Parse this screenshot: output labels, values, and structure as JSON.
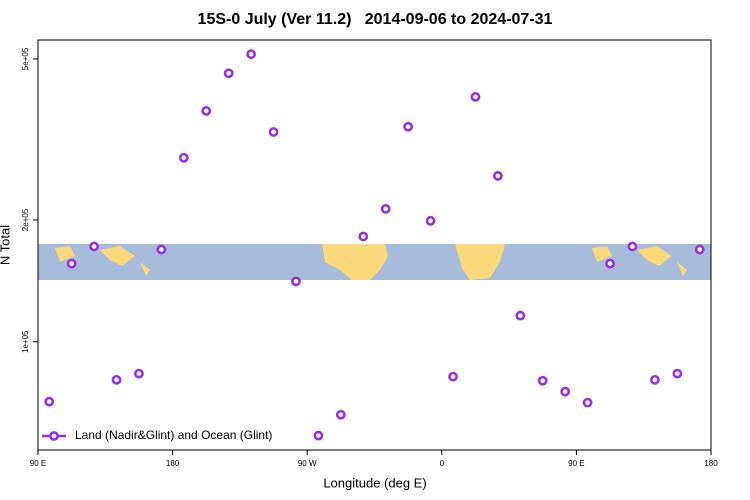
{
  "chart_data": {
    "type": "scatter",
    "title": "15S-0 July (Ver 11.2)   2014-09-06 to 2024-07-31",
    "x_label": "Longitude (deg E)",
    "y_label": "N Total",
    "log_y": true,
    "xlim": [
      90,
      540
    ],
    "ylim": [
      54000,
      557000
    ],
    "xticks": [
      {
        "value": 90,
        "label": "90 E"
      },
      180,
      {
        "value": 270,
        "label": "90 W"
      },
      {
        "value": 360,
        "label": "0"
      },
      {
        "value": 450,
        "label": "90 E"
      },
      {
        "value": 540,
        "label": "180"
      }
    ],
    "yticks": [
      {
        "value": 100000,
        "label": "1e+05"
      },
      {
        "value": 200000,
        "label": "2e+05"
      },
      {
        "value": 500000,
        "label": "5e+05"
      }
    ],
    "legend": "bottom-left",
    "series": [
      {
        "name": "Land (Nadir&Glint) and Ocean (Glint)",
        "color": "#9b2fe6",
        "x": [
          97.5,
          112.5,
          127.5,
          142.5,
          157.5,
          172.5,
          187.5,
          202.5,
          217.5,
          232.5,
          247.5,
          262.5,
          277.5,
          292.5,
          307.5,
          322.5,
          337.5,
          352.5,
          367.5,
          382.5,
          397.5,
          412.5,
          427.5,
          442.5,
          457.5,
          472.5,
          487.5,
          502.5,
          517.5,
          532.5
        ],
        "values": [
          71100,
          156000,
          172000,
          80500,
          83400,
          169000,
          285000,
          372000,
          461000,
          514000,
          330000,
          141000,
          58600,
          66000,
          182000,
          213000,
          340000,
          199000,
          82000,
          403000,
          257000,
          116000,
          80100,
          75300,
          70700,
          156000,
          172000,
          80500,
          83400,
          169000
        ]
      }
    ]
  }
}
